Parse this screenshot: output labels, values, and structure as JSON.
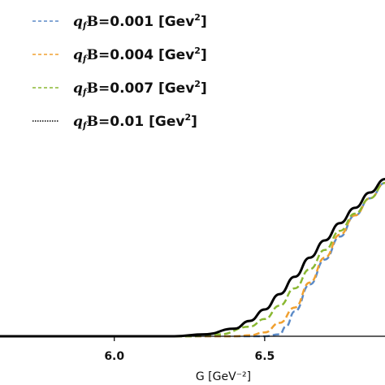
{
  "chart_data": {
    "type": "line",
    "title": "",
    "xlabel": "G [GeV⁻²]",
    "ylabel": "",
    "xlim": [
      5.62,
      6.9
    ],
    "ylim": [
      0,
      1
    ],
    "x_ticks": [
      "6.0",
      "6.5"
    ],
    "x_tick_values": [
      6.0,
      6.5
    ],
    "legend": {
      "position": "top-left"
    },
    "series": [
      {
        "name": "q_f B=0.001 [Gev²]",
        "label_parts": {
          "var": "q",
          "sub": "f",
          "mid": "B=",
          "value": "0.001",
          "unit": " [Gev",
          "sup": "2",
          "close": "]"
        },
        "color": "#5b8ac7",
        "dash": "dashed",
        "x": [
          5.62,
          6.5,
          6.55,
          6.57,
          6.6,
          6.65,
          6.7,
          6.75,
          6.8,
          6.85,
          6.9
        ],
        "y": [
          0,
          0,
          0.01,
          0.05,
          0.13,
          0.27,
          0.4,
          0.52,
          0.63,
          0.72,
          0.8
        ]
      },
      {
        "name": "q_f B=0.004 [Gev²]",
        "label_parts": {
          "var": "q",
          "sub": "f",
          "mid": "B=",
          "value": "0.004",
          "unit": " [Gev",
          "sup": "2",
          "close": "]"
        },
        "color": "#f0a030",
        "dash": "dashed",
        "x": [
          5.62,
          6.4,
          6.45,
          6.5,
          6.55,
          6.6,
          6.65,
          6.7,
          6.75,
          6.8,
          6.85,
          6.9
        ],
        "y": [
          0,
          0,
          0.005,
          0.02,
          0.07,
          0.15,
          0.28,
          0.41,
          0.53,
          0.63,
          0.72,
          0.8
        ]
      },
      {
        "name": "q_f B=0.007 [Gev²]",
        "label_parts": {
          "var": "q",
          "sub": "f",
          "mid": "B=",
          "value": "0.007",
          "unit": " [Gev",
          "sup": "2",
          "close": "]"
        },
        "color": "#8ab832",
        "dash": "dashed",
        "x": [
          5.62,
          6.25,
          6.35,
          6.45,
          6.5,
          6.55,
          6.6,
          6.65,
          6.7,
          6.75,
          6.8,
          6.85,
          6.9
        ],
        "y": [
          0,
          0,
          0.01,
          0.05,
          0.09,
          0.16,
          0.25,
          0.35,
          0.45,
          0.55,
          0.64,
          0.72,
          0.8
        ]
      },
      {
        "name": "q_f B=0.01 [Gev²]",
        "label_parts": {
          "var": "q",
          "sub": "f",
          "mid": "B=",
          "value": "0.01",
          "unit": " [Gev",
          "sup": "2",
          "close": "]"
        },
        "color": "#000000",
        "dash": "solid",
        "x": [
          5.62,
          6.2,
          6.3,
          6.4,
          6.45,
          6.5,
          6.55,
          6.6,
          6.65,
          6.7,
          6.75,
          6.8,
          6.85,
          6.9
        ],
        "y": [
          0,
          0,
          0.01,
          0.04,
          0.08,
          0.14,
          0.22,
          0.31,
          0.41,
          0.5,
          0.59,
          0.67,
          0.75,
          0.82
        ]
      }
    ]
  }
}
